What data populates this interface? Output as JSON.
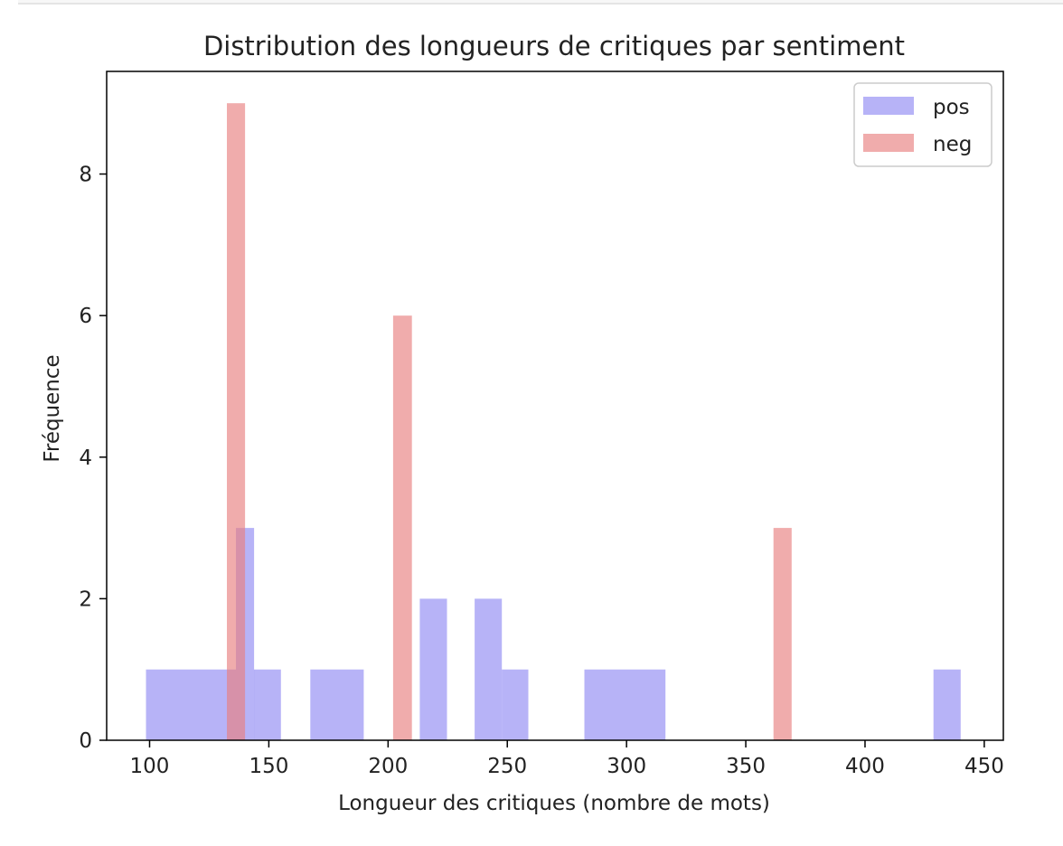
{
  "chart_data": {
    "type": "histogram",
    "title": "Distribution des longueurs de critiques par sentiment",
    "xlabel": "Longueur des critiques (nombre de mots)",
    "ylabel": "Fréquence",
    "xlim": [
      82,
      458
    ],
    "ylim": [
      0,
      9.45
    ],
    "xticks": [
      100,
      150,
      200,
      250,
      300,
      350,
      400,
      450
    ],
    "yticks": [
      0,
      2,
      4,
      6,
      8
    ],
    "legend": {
      "position": "top-right",
      "entries": [
        "pos",
        "neg"
      ]
    },
    "grid": false,
    "series": [
      {
        "name": "pos",
        "color": "#7b74f0",
        "opacity": 0.55,
        "bins": [
          {
            "x0": 98.5,
            "x1": 136.2,
            "count": 1
          },
          {
            "x0": 136.2,
            "x1": 143.8,
            "count": 3
          },
          {
            "x0": 143.8,
            "x1": 155.1,
            "count": 1
          },
          {
            "x0": 167.4,
            "x1": 189.8,
            "count": 1
          },
          {
            "x0": 213.3,
            "x1": 224.7,
            "count": 2
          },
          {
            "x0": 236.3,
            "x1": 247.7,
            "count": 2
          },
          {
            "x0": 247.7,
            "x1": 258.8,
            "count": 1
          },
          {
            "x0": 282.3,
            "x1": 316.3,
            "count": 1
          },
          {
            "x0": 428.7,
            "x1": 440.1,
            "count": 1
          }
        ]
      },
      {
        "name": "neg",
        "color": "#e88080",
        "opacity": 0.65,
        "bins": [
          {
            "x0": 132.4,
            "x1": 140.0,
            "count": 9
          },
          {
            "x0": 202.1,
            "x1": 210.0,
            "count": 6
          },
          {
            "x0": 361.6,
            "x1": 369.2,
            "count": 3
          }
        ]
      }
    ]
  }
}
